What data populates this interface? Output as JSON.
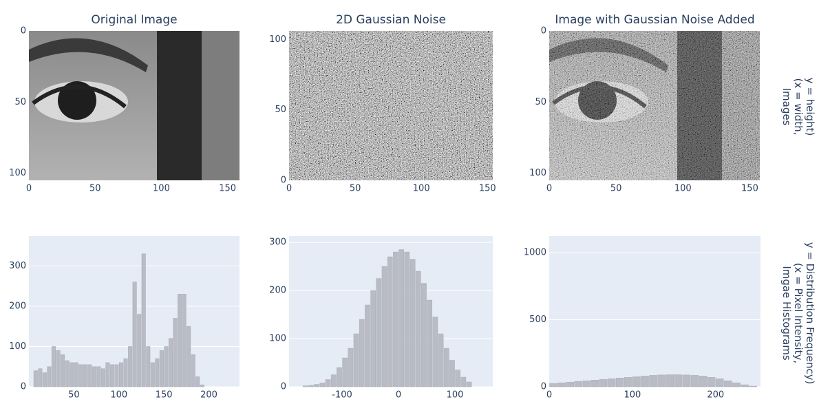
{
  "chart_data": [
    {
      "type": "image",
      "title": "Original Image",
      "xlim": [
        0,
        159
      ],
      "xticks": [
        0,
        50,
        100,
        150
      ],
      "ylim": [
        0,
        105
      ],
      "yticks": [
        0,
        50,
        100
      ],
      "y_reversed": true
    },
    {
      "type": "image",
      "title": "2D Gaussian Noise",
      "xlim": [
        0,
        154
      ],
      "xticks": [
        0,
        50,
        100,
        150
      ],
      "ylim": [
        0,
        106
      ],
      "yticks": [
        0,
        50,
        100
      ],
      "y_reversed": false
    },
    {
      "type": "image",
      "title": "Image with Gaussian Noise Added",
      "xlim": [
        0,
        158
      ],
      "xticks": [
        0,
        50,
        100,
        150
      ],
      "ylim": [
        0,
        105
      ],
      "yticks": [
        0,
        50,
        100
      ],
      "y_reversed": true
    },
    {
      "type": "histogram",
      "color": "#b9bcc4",
      "xlim": [
        0,
        234
      ],
      "xticks": [
        50,
        100,
        150,
        200
      ],
      "ylim": [
        0,
        374
      ],
      "yticks": [
        0,
        100,
        200,
        300
      ],
      "grid": true,
      "bins": [
        5,
        10,
        15,
        20,
        25,
        30,
        35,
        40,
        45,
        50,
        55,
        60,
        65,
        70,
        75,
        80,
        85,
        90,
        95,
        100,
        105,
        110,
        115,
        120,
        125,
        130,
        135,
        140,
        145,
        150,
        155,
        160,
        165,
        170,
        175,
        180,
        185,
        190,
        195,
        200
      ],
      "values": [
        40,
        45,
        35,
        50,
        100,
        90,
        80,
        65,
        60,
        60,
        55,
        55,
        55,
        50,
        50,
        45,
        60,
        55,
        55,
        60,
        70,
        100,
        260,
        180,
        330,
        100,
        60,
        70,
        90,
        100,
        120,
        170,
        230,
        230,
        150,
        80,
        25,
        5,
        0
      ]
    },
    {
      "type": "histogram",
      "color": "#b9bcc4",
      "xlim": [
        -194,
        167
      ],
      "xticks": [
        -100,
        0,
        100
      ],
      "ylim": [
        0,
        313
      ],
      "yticks": [
        0,
        100,
        200,
        300
      ],
      "grid": true,
      "bins": [
        -170,
        -160,
        -150,
        -140,
        -130,
        -120,
        -110,
        -100,
        -90,
        -80,
        -70,
        -60,
        -50,
        -40,
        -30,
        -20,
        -10,
        0,
        10,
        20,
        30,
        40,
        50,
        60,
        70,
        80,
        90,
        100,
        110,
        120,
        130
      ],
      "values": [
        2,
        3,
        5,
        8,
        15,
        25,
        40,
        60,
        80,
        110,
        140,
        170,
        200,
        225,
        250,
        270,
        280,
        285,
        280,
        265,
        240,
        215,
        180,
        145,
        110,
        80,
        55,
        35,
        20,
        10
      ]
    },
    {
      "type": "histogram",
      "color": "#b9bcc4",
      "xlim": [
        0,
        254
      ],
      "xticks": [
        0,
        100,
        200
      ],
      "ylim": [
        0,
        1123
      ],
      "yticks": [
        0,
        500,
        1000
      ],
      "grid": true,
      "bins": [
        0,
        10,
        20,
        30,
        40,
        50,
        60,
        70,
        80,
        90,
        100,
        110,
        120,
        130,
        140,
        150,
        160,
        170,
        180,
        190,
        200,
        210,
        220,
        230,
        240,
        250
      ],
      "values": [
        25,
        30,
        35,
        40,
        45,
        50,
        55,
        60,
        65,
        70,
        75,
        80,
        85,
        88,
        90,
        90,
        88,
        85,
        80,
        70,
        60,
        45,
        30,
        15,
        5
      ]
    }
  ],
  "annotations": [
    "Images\n(x = width,\ny = height)",
    "Imgae Histograms\n(x = Pixel Intensity,\ny = Distribution Frequency)"
  ]
}
